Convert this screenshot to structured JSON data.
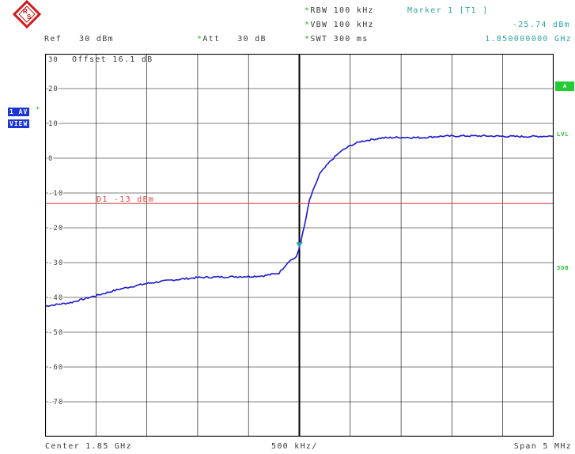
{
  "header": {
    "logo": "rohde-schwarz-logo",
    "ref_label": "Ref",
    "ref_value": "30 dBm",
    "att_label": "Att",
    "att_value": "30 dB",
    "rbw_label": "RBW",
    "rbw_value": "100 kHz",
    "vbw_label": "VBW",
    "vbw_value": "100 kHz",
    "swt_label": "SWT",
    "swt_value": "300 ms",
    "marker_title": "Marker 1 [T1 ]",
    "marker_level": "-25.74 dBm",
    "marker_freq": "1.850000000 GHz",
    "star": "*"
  },
  "left_panel": {
    "trace_badge": "1 AV",
    "view_badge": "VIEW"
  },
  "right_panel": {
    "a_badge": "A",
    "lvl_label": "LVL",
    "db3_label": "3DB"
  },
  "plot": {
    "offset_label": "Offset 16.1 dB",
    "display_line_label": "D1 -13 dBm",
    "display_line_level": -13,
    "y_tick_labels": [
      "30",
      "20",
      "10",
      "0",
      "-10",
      "-20",
      "-30",
      "-40",
      "-50",
      "-60",
      "-70"
    ]
  },
  "footer": {
    "center_label": "Center 1.85 GHz",
    "div_label": "500 kHz/",
    "span_label": "Span 5 MHz"
  },
  "chart_data": {
    "type": "line",
    "x_unit": "MHz",
    "y_unit": "dBm",
    "xlim": [
      1847.5,
      1852.5
    ],
    "ylim": [
      -80,
      30
    ],
    "grid": true,
    "series": [
      {
        "x": [
          1847.5,
          1847.75,
          1848.0,
          1848.25,
          1848.5,
          1848.75,
          1849.0,
          1849.25,
          1849.5,
          1849.65,
          1849.8,
          1849.9,
          1849.97,
          1850.0,
          1850.05,
          1850.1,
          1850.2,
          1850.3,
          1850.4,
          1850.5,
          1850.6,
          1850.8,
          1851.0,
          1851.2,
          1851.4,
          1851.6,
          1851.8,
          1852.0,
          1852.2,
          1852.4,
          1852.5
        ],
        "y": [
          -42.5,
          -41.5,
          -39.5,
          -37.5,
          -36.0,
          -35.0,
          -34.3,
          -34.1,
          -34.0,
          -33.8,
          -33.0,
          -29.5,
          -28.5,
          -25.7,
          -19.5,
          -12.0,
          -4.5,
          -1.0,
          1.8,
          3.6,
          4.8,
          5.8,
          6.0,
          5.9,
          6.3,
          6.4,
          6.4,
          6.3,
          6.2,
          6.3,
          6.4
        ],
        "color": "#1a1ad0"
      }
    ],
    "markers": [
      {
        "name": "M1",
        "x": 1850.0,
        "y": -25.74,
        "color": "#22a0a0"
      }
    ]
  }
}
